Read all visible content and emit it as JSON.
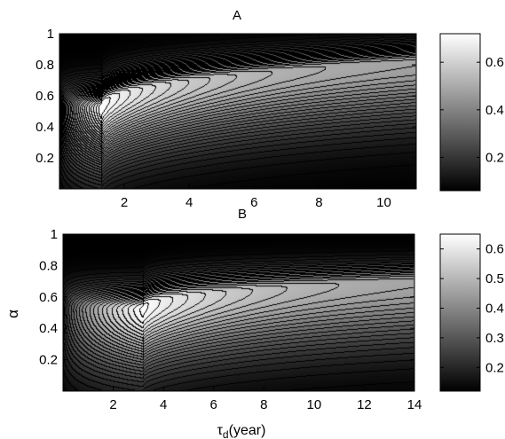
{
  "chart_data": [
    {
      "type": "heatmap",
      "title": "A",
      "xlabel": "",
      "ylabel": "",
      "xlim": [
        0,
        11
      ],
      "ylim": [
        0,
        1
      ],
      "xticks": [
        2,
        4,
        6,
        8,
        10
      ],
      "yticks": [
        0.2,
        0.4,
        0.6,
        0.8,
        1
      ],
      "colormap": "gray",
      "colorbar": {
        "range": [
          0.06,
          0.72
        ],
        "ticks": [
          0.2,
          0.4,
          0.6
        ]
      },
      "peak": {
        "x": 1.3,
        "y": 0.52,
        "value": 0.7
      },
      "ridge": {
        "x_start": 1.3,
        "y_start": 0.52,
        "x_end": 11,
        "y_end": 0.82
      },
      "contour_spacing": 0.02
    },
    {
      "type": "heatmap",
      "title": "B",
      "xlabel": "τd(year)",
      "ylabel": "α",
      "xlim": [
        0,
        14
      ],
      "ylim": [
        0,
        1
      ],
      "xticks": [
        2,
        4,
        6,
        8,
        10,
        12,
        14
      ],
      "yticks": [
        0.2,
        0.4,
        0.6,
        0.8,
        1
      ],
      "colormap": "gray",
      "colorbar": {
        "range": [
          0.12,
          0.65
        ],
        "ticks": [
          0.2,
          0.3,
          0.4,
          0.5,
          0.6
        ]
      },
      "peak": {
        "x": 3.2,
        "y": 0.52,
        "value": 0.63
      },
      "ridge": {
        "x_start": 3.2,
        "y_start": 0.52,
        "x_end": 14,
        "y_end": 0.7
      },
      "contour_spacing": 0.02
    }
  ]
}
